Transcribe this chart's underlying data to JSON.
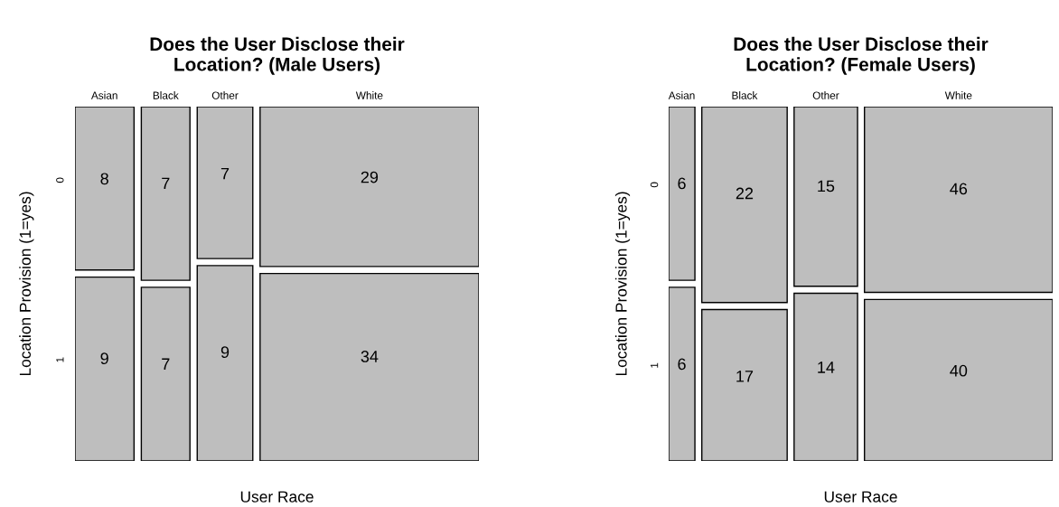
{
  "chart_data": [
    {
      "type": "other",
      "title": "Does the User Disclose their\nLocation? (Male Users)",
      "xlabel": "User Race",
      "ylabel": "Location Provision (1=yes)",
      "categories": [
        "Asian",
        "Black",
        "Other",
        "White"
      ],
      "series": [
        {
          "name": "0",
          "color": "#bebebe",
          "values": [
            8,
            7,
            7,
            29
          ]
        },
        {
          "name": "1",
          "color": "#bebebe",
          "values": [
            9,
            7,
            9,
            34
          ]
        }
      ],
      "data_labels": true
    },
    {
      "type": "other",
      "title": "Does the User Disclose their\nLocation? (Female Users)",
      "xlabel": "User Race",
      "ylabel": "Location Provision (1=yes)",
      "categories": [
        "Asian",
        "Black",
        "Other",
        "White"
      ],
      "series": [
        {
          "name": "0",
          "color": "#bebebe",
          "values": [
            6,
            22,
            15,
            46
          ]
        },
        {
          "name": "1",
          "color": "#bebebe",
          "values": [
            6,
            17,
            14,
            40
          ]
        }
      ],
      "data_labels": true
    }
  ]
}
